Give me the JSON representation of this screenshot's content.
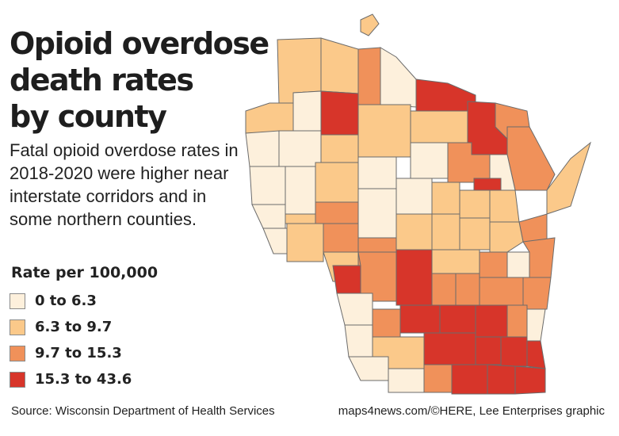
{
  "title_lines": [
    "Opioid overdose",
    "death rates",
    "by county"
  ],
  "subtitle": "Fatal opioid overdose rates in 2018-2020 were higher near interstate corridors and in some northern counties.",
  "legend": {
    "title": "Rate per 100,000",
    "items": [
      {
        "label": "0 to 6.3",
        "color": "#fdf0dc"
      },
      {
        "label": "6.3 to 9.7",
        "color": "#fbc98a"
      },
      {
        "label": "9.7 to 15.3",
        "color": "#f0915a"
      },
      {
        "label": "15.3 to 43.6",
        "color": "#d7352a"
      }
    ]
  },
  "source": "Source: Wisconsin Department of Health Services",
  "credit": "maps4news.com/©HERE, Lee Enterprises graphic",
  "map_colors": {
    "outline": "#6b6b6b",
    "water": "#ffffff"
  }
}
